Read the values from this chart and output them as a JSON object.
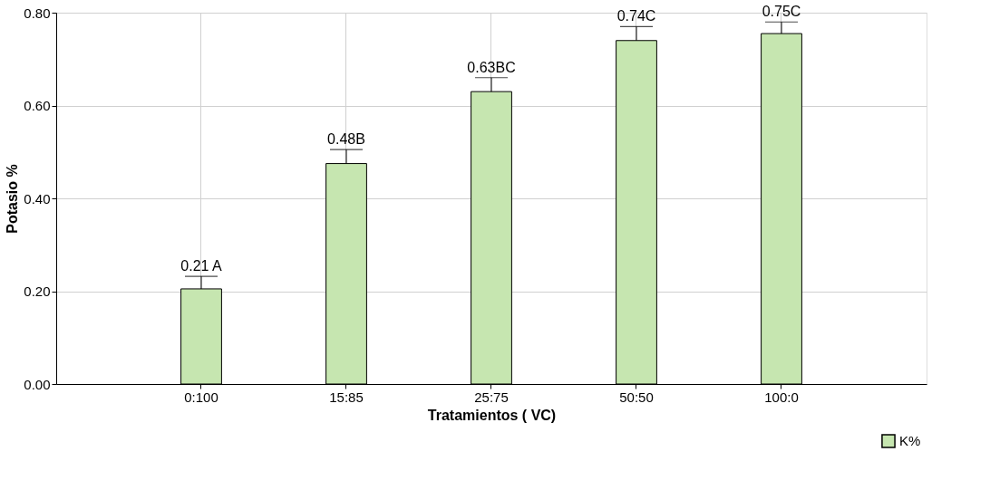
{
  "chart_data": {
    "type": "bar",
    "xlabel": "Tratamientos ( VC)",
    "ylabel": "Potasio %",
    "categories": [
      "0:100",
      "15:85",
      "25:75",
      "50:50",
      "100:0"
    ],
    "series": [
      {
        "name": "K%",
        "color": "#c6e6b0",
        "values": [
          0.205,
          0.475,
          0.63,
          0.74,
          0.755
        ],
        "errors": [
          [
            0.205,
            0.232
          ],
          [
            0.475,
            0.505
          ],
          [
            0.63,
            0.66
          ],
          [
            0.74,
            0.77
          ],
          [
            0.755,
            0.78
          ]
        ],
        "value_labels": [
          "0.21 A",
          "0.48B",
          "0.63BC",
          "0.74C",
          "0.75C"
        ]
      }
    ],
    "ylim": [
      0,
      0.8
    ],
    "yticks": [
      {
        "value": 0,
        "label": "0.00"
      },
      {
        "value": 0.2,
        "label": "0.20"
      },
      {
        "value": 0.4,
        "label": "0.40"
      },
      {
        "value": 0.6,
        "label": "0.60"
      },
      {
        "value": 0.8,
        "label": "0.80"
      }
    ],
    "grid": true,
    "legend": "bottom right"
  }
}
